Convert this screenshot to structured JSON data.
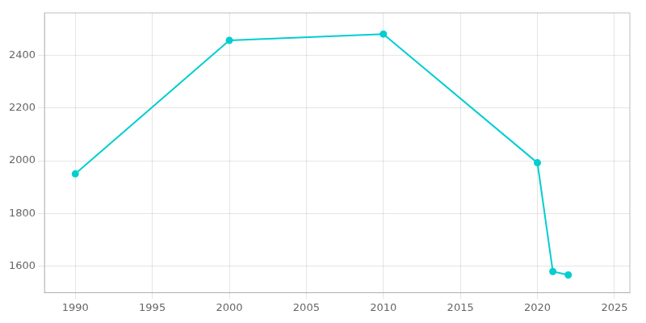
{
  "chart_data": {
    "type": "line",
    "x": [
      1990,
      2000,
      2010,
      2020,
      2021,
      2022
    ],
    "values": [
      1950,
      2456,
      2480,
      1992,
      1580,
      1567
    ],
    "color": "#00CED1",
    "marker": "circle",
    "xlim": [
      1988,
      2026
    ],
    "ylim": [
      1500,
      2560
    ],
    "xticks": [
      1990,
      1995,
      2000,
      2005,
      2010,
      2015,
      2020,
      2025
    ],
    "yticks": [
      1600,
      1800,
      2000,
      2200,
      2400
    ],
    "grid": true
  }
}
